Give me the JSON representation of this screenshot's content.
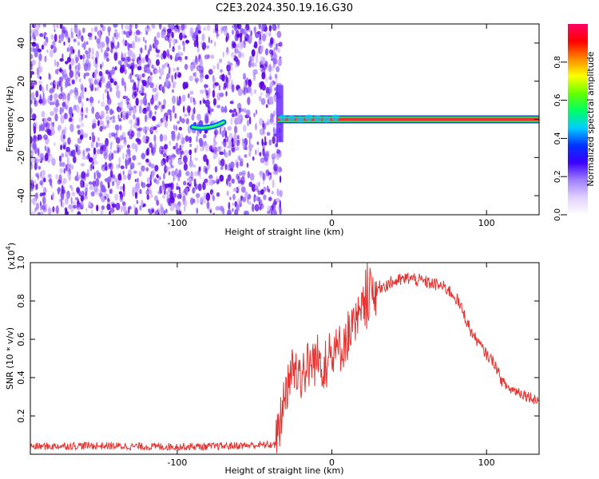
{
  "figure_title": "C2E3.2024.350.19.16.G30",
  "colors": {
    "snr_line": "#e8322f",
    "line_center": "#e8322f",
    "line_edge": "#39d66b",
    "noise_dark": "#5a00e6",
    "noise_light": "#c8a8ff",
    "colorbar_stops": [
      "#ffffff",
      "#e0d0ff",
      "#9f7fff",
      "#3b00ff",
      "#0033ff",
      "#00ccff",
      "#00ff66",
      "#66ff00",
      "#ffff00",
      "#ff8800",
      "#ff0000",
      "#ff0066"
    ]
  },
  "chart_data": [
    {
      "type": "heatmap",
      "title": "",
      "xlabel": "Height of straight line (km)",
      "ylabel": "Frequency (Hz)",
      "xlim": [
        -195,
        134
      ],
      "ylim": [
        -50,
        50
      ],
      "x_ticks": [
        -100,
        0,
        100
      ],
      "x_tick_labels": [
        "-100",
        "0",
        "100"
      ],
      "y_ticks": [
        -40,
        -20,
        0,
        20,
        40
      ],
      "y_tick_labels": [
        "-40",
        "-20",
        "0",
        "20",
        "40"
      ],
      "colorbar": {
        "label": "Normalized spectral amplitude",
        "range": [
          0,
          1
        ],
        "ticks": [
          0.0,
          0.2,
          0.4,
          0.6,
          0.8
        ],
        "tick_labels": [
          "0.0",
          "0.2",
          "0.4",
          "0.6",
          "0.8"
        ]
      },
      "noise_region": {
        "x_from": -195,
        "x_to": -35,
        "fraction_kept": 0.55
      },
      "features": [
        {
          "description_kind": "speckle",
          "x_from": -90,
          "x_to": -70,
          "freq": -4
        },
        {
          "description_kind": "onset",
          "x_from": -36,
          "x_to": -33,
          "freq_from": -12,
          "freq_to": 18
        },
        {
          "description_kind": "line",
          "x_from": -35,
          "x_to": 134,
          "freq": 0
        }
      ]
    },
    {
      "type": "line",
      "title": "",
      "xlabel": "Height of straight line (km)",
      "ylabel": "SNR (10 * v/v)",
      "y_scale_label": "(x10",
      "y_scale_exp": "4",
      "xlim": [
        -195,
        134
      ],
      "ylim": [
        0,
        1.0
      ],
      "x_ticks": [
        -100,
        0,
        100
      ],
      "x_tick_labels": [
        "-100",
        "0",
        "100"
      ],
      "y_ticks": [
        0.2,
        0.4,
        0.6,
        0.8,
        1.0
      ],
      "y_tick_labels": [
        "0.2",
        "0.4",
        "0.6",
        "0.8",
        "1.0"
      ],
      "series": [
        {
          "x": [
            -195,
            -160,
            -120,
            -80,
            -60,
            -36,
            -30,
            -25,
            -20,
            -10,
            -5,
            0,
            5,
            10,
            15,
            20,
            25,
            30,
            40,
            50,
            60,
            70,
            75,
            80,
            85,
            90,
            95,
            100,
            105,
            110,
            115,
            120,
            125,
            134
          ],
          "y": [
            0.04,
            0.045,
            0.04,
            0.04,
            0.045,
            0.05,
            0.34,
            0.45,
            0.42,
            0.5,
            0.47,
            0.5,
            0.55,
            0.62,
            0.66,
            0.74,
            0.84,
            0.87,
            0.9,
            0.92,
            0.9,
            0.88,
            0.86,
            0.82,
            0.74,
            0.64,
            0.58,
            0.52,
            0.48,
            0.38,
            0.34,
            0.33,
            0.31,
            0.28
          ]
        }
      ]
    }
  ]
}
